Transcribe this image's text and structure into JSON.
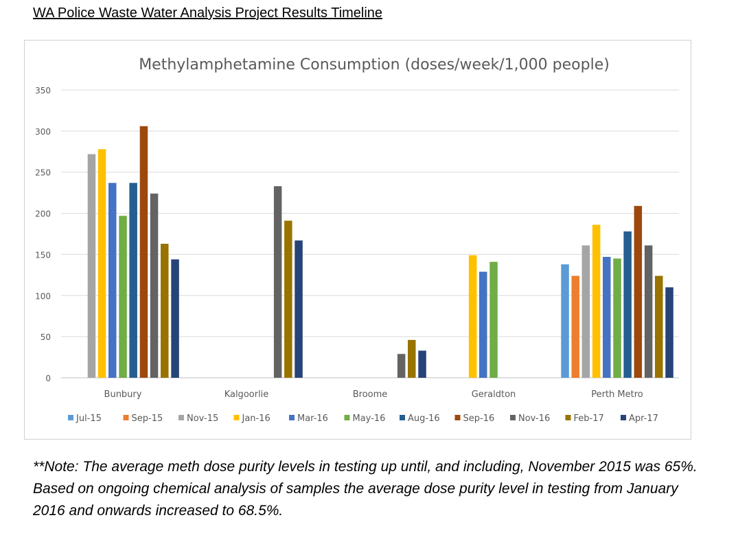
{
  "page_title": "WA Police Waste Water Analysis Project Results Timeline",
  "note": "**Note: The average meth dose purity levels in testing up until, and including, November 2015 was 65%. Based on ongoing chemical analysis of samples the average dose purity level in testing from January 2016 and onwards increased to 68.5%.",
  "chart_data": {
    "type": "bar",
    "title": "Methylamphetamine Consumption (doses/week/1,000 people)",
    "xlabel": "",
    "ylabel": "",
    "ylim": [
      0,
      350
    ],
    "yticks": [
      0,
      50,
      100,
      150,
      200,
      250,
      300,
      350
    ],
    "grid": true,
    "legend_position": "bottom",
    "categories": [
      "Bunbury",
      "Kalgoorlie",
      "Broome",
      "Geraldton",
      "Perth Metro"
    ],
    "series": [
      {
        "name": "Jul-15",
        "color": "#5B9BD5",
        "values": [
          null,
          null,
          null,
          null,
          138
        ]
      },
      {
        "name": "Sep-15",
        "color": "#ED7D31",
        "values": [
          null,
          null,
          null,
          null,
          124
        ]
      },
      {
        "name": "Nov-15",
        "color": "#A5A5A5",
        "values": [
          272,
          null,
          null,
          null,
          161
        ]
      },
      {
        "name": "Jan-16",
        "color": "#FFC000",
        "values": [
          278,
          null,
          null,
          149,
          186
        ]
      },
      {
        "name": "Mar-16",
        "color": "#4472C4",
        "values": [
          237,
          null,
          null,
          129,
          147
        ]
      },
      {
        "name": "May-16",
        "color": "#70AD47",
        "values": [
          197,
          null,
          null,
          141,
          145
        ]
      },
      {
        "name": "Aug-16",
        "color": "#255E91",
        "values": [
          237,
          null,
          null,
          null,
          178
        ]
      },
      {
        "name": "Sep-16",
        "color": "#9E480E",
        "values": [
          306,
          null,
          null,
          null,
          209
        ]
      },
      {
        "name": "Nov-16",
        "color": "#636363",
        "values": [
          224,
          233,
          29,
          null,
          161
        ]
      },
      {
        "name": "Feb-17",
        "color": "#997300",
        "values": [
          163,
          191,
          46,
          null,
          124
        ]
      },
      {
        "name": "Apr-17",
        "color": "#264478",
        "values": [
          144,
          167,
          33,
          null,
          110
        ]
      }
    ]
  }
}
